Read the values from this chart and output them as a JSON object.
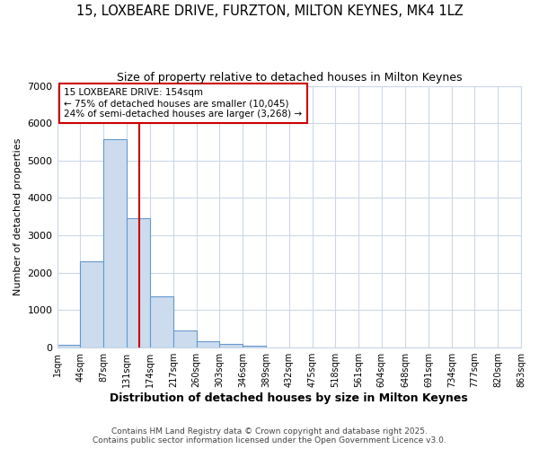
{
  "title1": "15, LOXBEARE DRIVE, FURZTON, MILTON KEYNES, MK4 1LZ",
  "title2": "Size of property relative to detached houses in Milton Keynes",
  "xlabel": "Distribution of detached houses by size in Milton Keynes",
  "ylabel": "Number of detached properties",
  "bin_labels": [
    "1sqm",
    "44sqm",
    "87sqm",
    "131sqm",
    "174sqm",
    "217sqm",
    "260sqm",
    "303sqm",
    "346sqm",
    "389sqm",
    "432sqm",
    "475sqm",
    "518sqm",
    "561sqm",
    "604sqm",
    "648sqm",
    "691sqm",
    "734sqm",
    "777sqm",
    "820sqm",
    "863sqm"
  ],
  "bin_edges": [
    1,
    44,
    87,
    131,
    174,
    217,
    260,
    303,
    346,
    389,
    432,
    475,
    518,
    561,
    604,
    648,
    691,
    734,
    777,
    820,
    863
  ],
  "bar_heights": [
    75,
    2300,
    5580,
    3450,
    1360,
    460,
    175,
    95,
    45,
    0,
    0,
    0,
    0,
    0,
    0,
    0,
    0,
    0,
    0,
    0
  ],
  "bar_color": "#ccdcee",
  "bar_edge_color": "#6699cc",
  "red_line_x": 154,
  "red_line_color": "#cc0000",
  "annotation_title": "15 LOXBEARE DRIVE: 154sqm",
  "annotation_line1": "← 75% of detached houses are smaller (10,045)",
  "annotation_line2": "24% of semi-detached houses are larger (3,268) →",
  "annotation_box_color": "#cc0000",
  "ylim": [
    0,
    7000
  ],
  "yticks": [
    0,
    1000,
    2000,
    3000,
    4000,
    5000,
    6000,
    7000
  ],
  "footer1": "Contains HM Land Registry data © Crown copyright and database right 2025.",
  "footer2": "Contains public sector information licensed under the Open Government Licence v3.0.",
  "bg_color": "#ffffff",
  "plot_bg_color": "#ffffff",
  "grid_color": "#ccd8e8"
}
